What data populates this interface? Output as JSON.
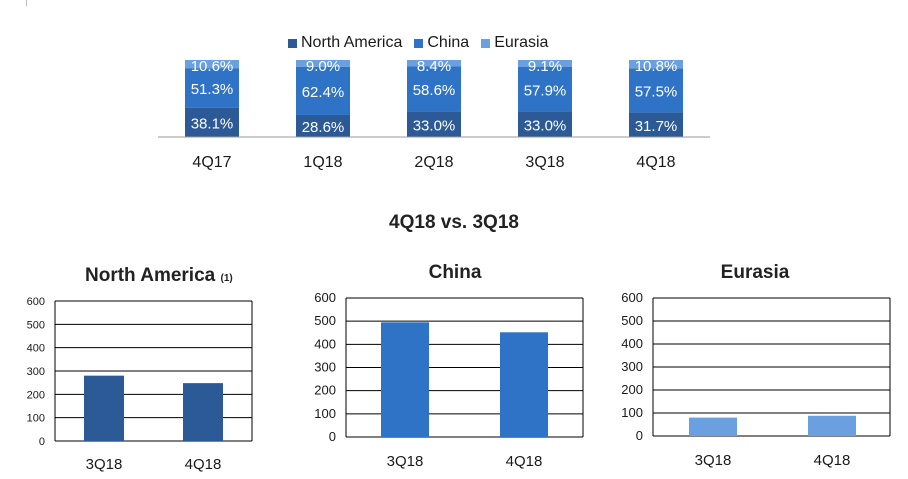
{
  "colors": {
    "north_america": "#2c5a97",
    "china": "#2f73c7",
    "eurasia": "#6a9fe0",
    "axis": "#999999",
    "grid": "#000000"
  },
  "legend": [
    {
      "label": "North America",
      "color": "#2c5a97"
    },
    {
      "label": "China",
      "color": "#2f73c7"
    },
    {
      "label": "Eurasia",
      "color": "#6a9fe0"
    }
  ],
  "section_title": "4Q18 vs. 3Q18",
  "chart_data": [
    {
      "type": "bar",
      "stacked": true,
      "categories": [
        "4Q17",
        "1Q18",
        "2Q18",
        "3Q18",
        "4Q18"
      ],
      "series": [
        {
          "name": "North America",
          "values": [
            38.1,
            28.6,
            33.0,
            33.0,
            31.7
          ],
          "labels": [
            "38.1%",
            "28.6%",
            "33.0%",
            "33.0%",
            "31.7%"
          ],
          "color": "#2c5a97"
        },
        {
          "name": "China",
          "values": [
            51.3,
            62.4,
            58.6,
            57.9,
            57.5
          ],
          "labels": [
            "51.3%",
            "62.4%",
            "58.6%",
            "57.9%",
            "57.5%"
          ],
          "color": "#2f73c7"
        },
        {
          "name": "Eurasia",
          "values": [
            10.6,
            9.0,
            8.4,
            9.1,
            10.8
          ],
          "labels": [
            "10.6%",
            "9.0%",
            "8.4%",
            "9.1%",
            "10.8%"
          ],
          "color": "#6a9fe0"
        }
      ],
      "legend_position": "top"
    },
    {
      "type": "bar",
      "title": "North America",
      "title_note": "(1)",
      "categories": [
        "3Q18",
        "4Q18"
      ],
      "values": [
        280,
        248
      ],
      "ylim": [
        0,
        600
      ],
      "yticks": [
        "0",
        "100",
        "200",
        "300",
        "400",
        "500",
        "600"
      ],
      "grid": true,
      "color": "#2c5a97"
    },
    {
      "type": "bar",
      "title": "China",
      "categories": [
        "3Q18",
        "4Q18"
      ],
      "values": [
        495,
        452
      ],
      "ylim": [
        0,
        600
      ],
      "yticks": [
        "0",
        "100",
        "200",
        "300",
        "400",
        "500",
        "600"
      ],
      "grid": true,
      "color": "#2f73c7"
    },
    {
      "type": "bar",
      "title": "Eurasia",
      "categories": [
        "3Q18",
        "4Q18"
      ],
      "values": [
        80,
        88
      ],
      "ylim": [
        0,
        600
      ],
      "yticks": [
        "0",
        "100",
        "200",
        "300",
        "400",
        "500",
        "600"
      ],
      "grid": true,
      "color": "#6a9fe0"
    }
  ]
}
